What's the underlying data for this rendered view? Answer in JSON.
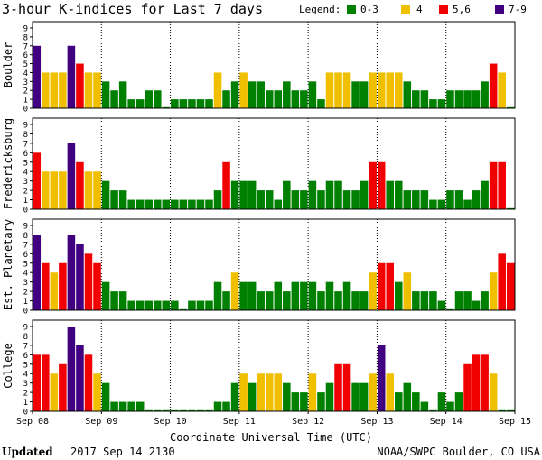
{
  "header": {
    "title": "3-hour K-indices for Last 7 days",
    "legend_label": "Legend:",
    "legend": [
      {
        "label": "0-3",
        "color": "#008000"
      },
      {
        "label": "4",
        "color": "#F0C000"
      },
      {
        "label": "5,6",
        "color": "#F00000"
      },
      {
        "label": "7-9",
        "color": "#400080"
      }
    ]
  },
  "footer": {
    "updated_label": "Updated",
    "updated_value": "2017 Sep 14 2130",
    "credit": "NOAA/SWPC Boulder, CO USA"
  },
  "chart_data": [
    {
      "type": "bar",
      "title": "Boulder",
      "ylim": [
        0,
        9
      ],
      "yticks": [
        "0",
        "1",
        "2",
        "3",
        "4",
        "5",
        "6",
        "7",
        "8",
        "9"
      ],
      "xlabel": "Coordinate Universal Time (UTC)",
      "xticks": [
        "Sep 08",
        "Sep 09",
        "Sep 10",
        "Sep 11",
        "Sep 12",
        "Sep 13",
        "Sep 14",
        "Sep 15"
      ],
      "values": [
        7,
        4,
        4,
        4,
        7,
        5,
        4,
        4,
        3,
        2,
        3,
        1,
        1,
        2,
        2,
        0,
        1,
        1,
        1,
        1,
        1,
        4,
        2,
        3,
        4,
        3,
        3,
        2,
        2,
        3,
        2,
        2,
        3,
        1,
        4,
        4,
        4,
        3,
        3,
        4,
        4,
        4,
        4,
        3,
        2,
        2,
        1,
        1,
        2,
        2,
        2,
        2,
        3,
        5,
        4,
        0
      ]
    },
    {
      "type": "bar",
      "title": "Fredericksburg",
      "ylim": [
        0,
        9
      ],
      "yticks": [
        "0",
        "1",
        "2",
        "3",
        "4",
        "5",
        "6",
        "7",
        "8",
        "9"
      ],
      "values": [
        6,
        4,
        4,
        4,
        7,
        5,
        4,
        4,
        3,
        2,
        2,
        1,
        1,
        1,
        1,
        1,
        1,
        1,
        1,
        1,
        1,
        2,
        5,
        3,
        3,
        3,
        2,
        2,
        1,
        3,
        2,
        2,
        3,
        2,
        3,
        3,
        2,
        2,
        3,
        5,
        5,
        3,
        3,
        2,
        2,
        2,
        1,
        1,
        2,
        2,
        1,
        2,
        3,
        5,
        5,
        0
      ]
    },
    {
      "type": "bar",
      "title": "Est. Planetary",
      "ylim": [
        0,
        9
      ],
      "yticks": [
        "0",
        "1",
        "2",
        "3",
        "4",
        "5",
        "6",
        "7",
        "8",
        "9"
      ],
      "values": [
        8,
        5,
        4,
        5,
        8,
        7,
        6,
        5,
        3,
        2,
        2,
        1,
        1,
        1,
        1,
        1,
        1,
        0,
        1,
        1,
        1,
        3,
        2,
        4,
        3,
        3,
        2,
        2,
        3,
        2,
        3,
        3,
        3,
        2,
        3,
        2,
        3,
        2,
        2,
        4,
        5,
        5,
        3,
        4,
        2,
        2,
        2,
        1,
        0,
        2,
        2,
        1,
        2,
        4,
        6,
        5
      ]
    },
    {
      "type": "bar",
      "title": "College",
      "ylim": [
        0,
        9
      ],
      "yticks": [
        "0",
        "1",
        "2",
        "3",
        "4",
        "5",
        "6",
        "7",
        "8",
        "9"
      ],
      "values": [
        6,
        6,
        4,
        5,
        9,
        7,
        6,
        4,
        3,
        1,
        1,
        1,
        1,
        0,
        0,
        0,
        0,
        0,
        0,
        0,
        0,
        1,
        1,
        3,
        4,
        3,
        4,
        4,
        4,
        3,
        2,
        2,
        4,
        2,
        3,
        5,
        5,
        3,
        3,
        4,
        7,
        4,
        2,
        3,
        2,
        1,
        0,
        2,
        1,
        2,
        5,
        6,
        6,
        4,
        0,
        0
      ]
    }
  ]
}
